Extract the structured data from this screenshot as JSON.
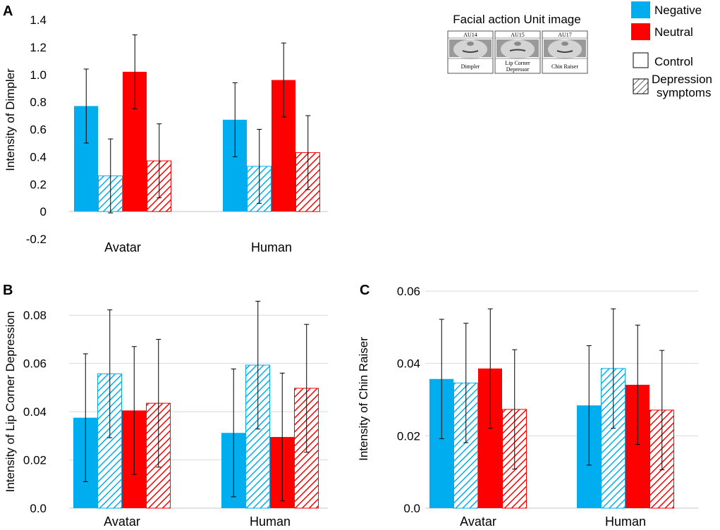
{
  "figure": {
    "panels": [
      "A",
      "B",
      "C"
    ]
  },
  "legend": {
    "items": [
      {
        "label": "Negative",
        "color": "#00AEEF"
      },
      {
        "label": "Neutral",
        "color": "#FF0000"
      },
      {
        "label": "Control",
        "pattern": "solid"
      },
      {
        "label_lines": [
          "Depression",
          "symptoms"
        ],
        "pattern": "hatched"
      }
    ]
  },
  "au_image": {
    "title": "Facial action Unit image",
    "units": [
      {
        "code": "AU14",
        "name_lines": [
          "Dimpler"
        ],
        "face_icon": "dimpler-face-icon"
      },
      {
        "code": "AU15",
        "name_lines": [
          "Lip Corner",
          "Depressor"
        ],
        "face_icon": "lip-corner-face-icon"
      },
      {
        "code": "AU17",
        "name_lines": [
          "Chin Raiser"
        ],
        "face_icon": "chin-raiser-face-icon"
      }
    ]
  },
  "colors": {
    "negative": "#00AEEF",
    "neutral": "#FF0000",
    "grid": "#D9D9D9"
  },
  "chart_data": [
    {
      "panel": "A",
      "type": "bar",
      "categories": [
        "Avatar",
        "Human"
      ],
      "ylabel": "Intensity of Dimpler",
      "ylim": [
        -0.2,
        1.4
      ],
      "yticks": [
        -0.2,
        0,
        0.2,
        0.4,
        0.6,
        0.8,
        1.0,
        1.2,
        1.4
      ],
      "ytick_labels": [
        "-0.2",
        "0",
        "0.2",
        "0.4",
        "0.6",
        "0.8",
        "1.0",
        "1.2",
        "1.4"
      ],
      "grid": false,
      "series": [
        {
          "name": "Negative Control",
          "color": "negative",
          "hatched": false,
          "values": [
            0.77,
            0.67
          ],
          "errors": [
            0.27,
            0.27
          ]
        },
        {
          "name": "Negative Depression symptoms",
          "color": "negative",
          "hatched": true,
          "values": [
            0.26,
            0.33
          ],
          "errors": [
            0.27,
            0.27
          ]
        },
        {
          "name": "Neutral Control",
          "color": "neutral",
          "hatched": false,
          "values": [
            1.02,
            0.96
          ],
          "errors": [
            0.27,
            0.27
          ]
        },
        {
          "name": "Neutral Depression symptoms",
          "color": "neutral",
          "hatched": true,
          "values": [
            0.37,
            0.43
          ],
          "errors": [
            0.27,
            0.27
          ]
        }
      ]
    },
    {
      "panel": "B",
      "type": "bar",
      "categories": [
        "Avatar",
        "Human"
      ],
      "ylabel": "Intensity of Lip Corner Depression",
      "ylim": [
        0,
        0.09
      ],
      "yticks": [
        0,
        0.02,
        0.04,
        0.06,
        0.08
      ],
      "ytick_labels": [
        "0.0",
        "0.02",
        "0.04",
        "0.06",
        "0.08"
      ],
      "grid": true,
      "series": [
        {
          "name": "Negative Control",
          "color": "negative",
          "hatched": false,
          "values": [
            0.0375,
            0.0312
          ],
          "errors": [
            0.0265,
            0.0265
          ]
        },
        {
          "name": "Negative Depression symptoms",
          "color": "negative",
          "hatched": true,
          "values": [
            0.0557,
            0.0593
          ],
          "errors": [
            0.0265,
            0.0265
          ]
        },
        {
          "name": "Neutral Control",
          "color": "neutral",
          "hatched": false,
          "values": [
            0.0405,
            0.0295
          ],
          "errors": [
            0.0265,
            0.0265
          ]
        },
        {
          "name": "Neutral Depression symptoms",
          "color": "neutral",
          "hatched": true,
          "values": [
            0.0435,
            0.0497
          ],
          "errors": [
            0.0265,
            0.0265
          ]
        }
      ]
    },
    {
      "panel": "C",
      "type": "bar",
      "categories": [
        "Avatar",
        "Human"
      ],
      "ylabel": "Intensity of Chin Raiser",
      "ylim": [
        0,
        0.06
      ],
      "yticks": [
        0,
        0.02,
        0.04,
        0.06
      ],
      "ytick_labels": [
        "0.0",
        "0.02",
        "0.04",
        "0.06"
      ],
      "grid": true,
      "series": [
        {
          "name": "Negative Control",
          "color": "negative",
          "hatched": false,
          "values": [
            0.0357,
            0.0284
          ],
          "errors": [
            0.0165,
            0.0165
          ]
        },
        {
          "name": "Negative Depression symptoms",
          "color": "negative",
          "hatched": true,
          "values": [
            0.0346,
            0.0386
          ],
          "errors": [
            0.0165,
            0.0165
          ]
        },
        {
          "name": "Neutral Control",
          "color": "neutral",
          "hatched": false,
          "values": [
            0.0386,
            0.0341
          ],
          "errors": [
            0.0165,
            0.0165
          ]
        },
        {
          "name": "Neutral Depression symptoms",
          "color": "neutral",
          "hatched": true,
          "values": [
            0.0273,
            0.0271
          ],
          "errors": [
            0.0165,
            0.0165
          ]
        }
      ]
    }
  ]
}
